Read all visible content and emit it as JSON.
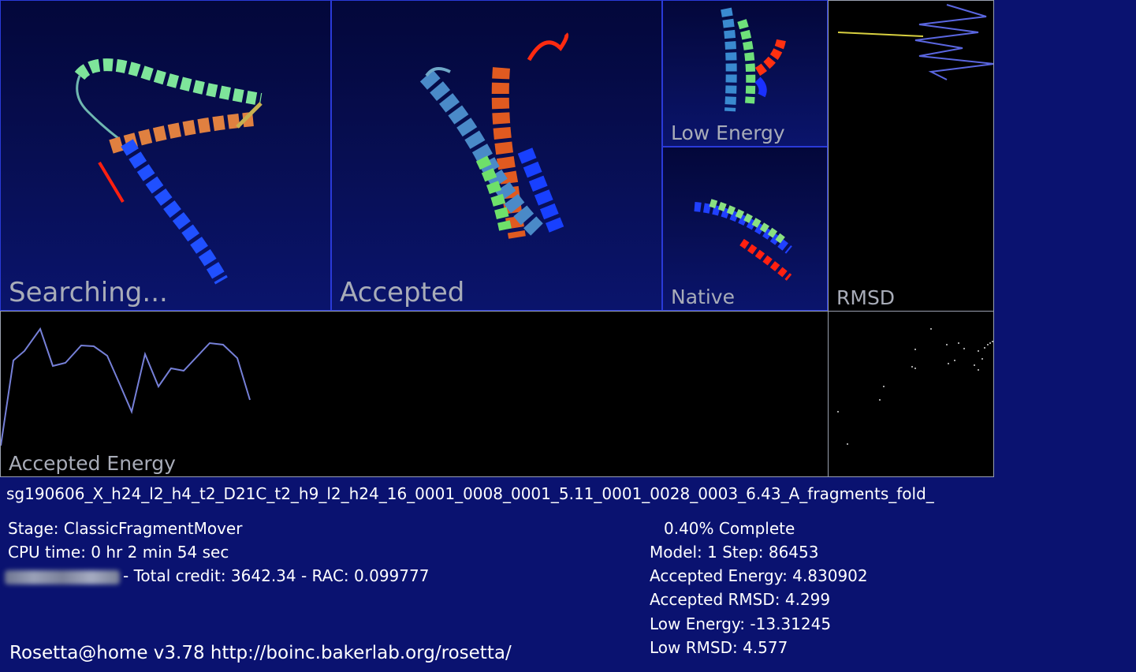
{
  "panels": {
    "searching": "Searching...",
    "accepted": "Accepted",
    "low_energy": "Low Energy",
    "native": "Native",
    "rmsd": "RMSD",
    "accepted_energy": "Accepted Energy"
  },
  "task_name": "sg190606_X_h24_l2_h4_t2_D21C_t2_h9_l2_h24_16_0001_0008_0001_5.11_0001_0028_0003_6.43_A_fragments_fold_",
  "left_info": {
    "stage": "Stage: ClassicFragmentMover",
    "cpu_time": "CPU time: 0 hr 2 min 54 sec",
    "credit": "- Total credit: 3642.34 - RAC: 0.099777"
  },
  "right_info": {
    "complete": "0.40% Complete",
    "model_step": "Model: 1  Step: 86453",
    "accepted_energy": "Accepted Energy: 4.830902",
    "accepted_rmsd": "Accepted RMSD:  4.299",
    "low_energy": "Low Energy: -13.31245",
    "low_rmsd": "Low RMSD:  4.577"
  },
  "footer": "Rosetta@home v3.78 http://boinc.bakerlab.org/rosetta/",
  "colors": {
    "background": "#0a1270",
    "panel_border": "#2a3ad8",
    "graph_border": "#9aa0b0",
    "label_gray": "#a8acb8"
  }
}
